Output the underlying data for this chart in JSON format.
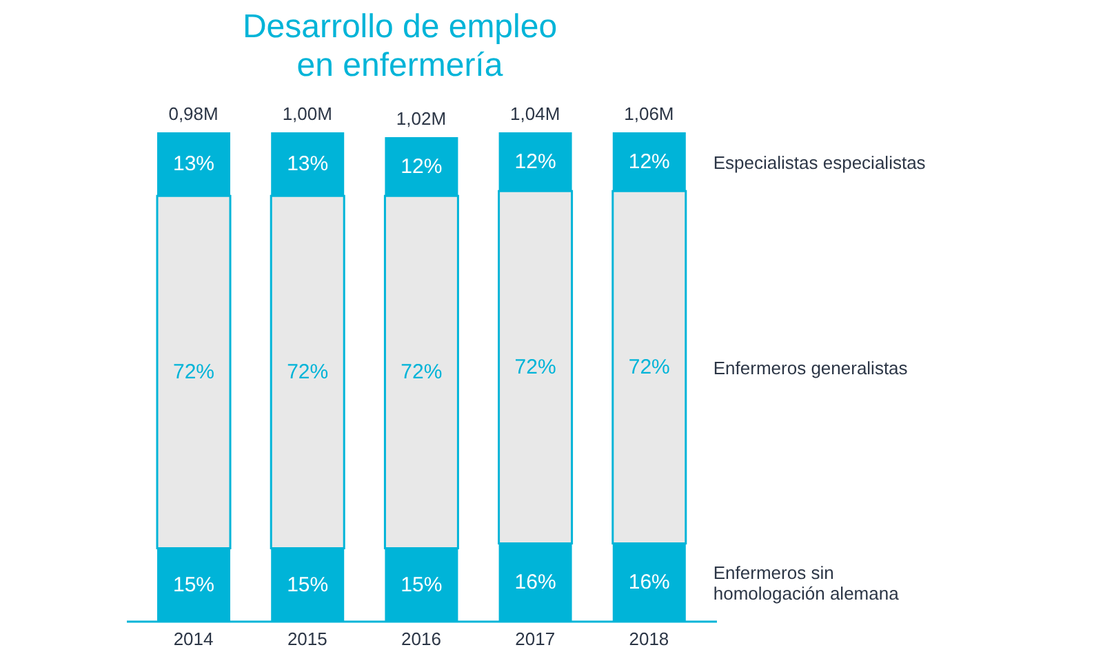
{
  "chart_data": {
    "type": "bar",
    "title": "Desarrollo de empleo en enfermería",
    "categories": [
      "2014",
      "2015",
      "2016",
      "2017",
      "2018"
    ],
    "stacked": true,
    "series": [
      {
        "name": "Enfermeros sin homologación alemana",
        "color": "#00b4d8",
        "values": [
          15,
          15,
          15,
          16,
          16
        ],
        "value_labels": [
          "15%",
          "15%",
          "15%",
          "16%",
          "16%"
        ]
      },
      {
        "name": "Enfermeros generalistas",
        "color": "#e8e8e8",
        "values": [
          72,
          72,
          72,
          72,
          72
        ],
        "value_labels": [
          "72%",
          "72%",
          "72%",
          "72%",
          "72%"
        ]
      },
      {
        "name": "Especialistas especialistas",
        "color": "#00b4d8",
        "values": [
          13,
          13,
          12,
          12,
          12
        ],
        "value_labels": [
          "13%",
          "13%",
          "12%",
          "12%",
          "12%"
        ]
      }
    ],
    "annotations": [
      {
        "text": "0,98M",
        "x": "2014",
        "y": 100
      },
      {
        "text": "1,00M",
        "x": "2015",
        "y": 100
      },
      {
        "text": "1,02M",
        "x": "2016",
        "y": 99
      },
      {
        "text": "1,04M",
        "x": "2017",
        "y": 100
      },
      {
        "text": "1,06M",
        "x": "2018",
        "y": 100
      }
    ]
  }
}
